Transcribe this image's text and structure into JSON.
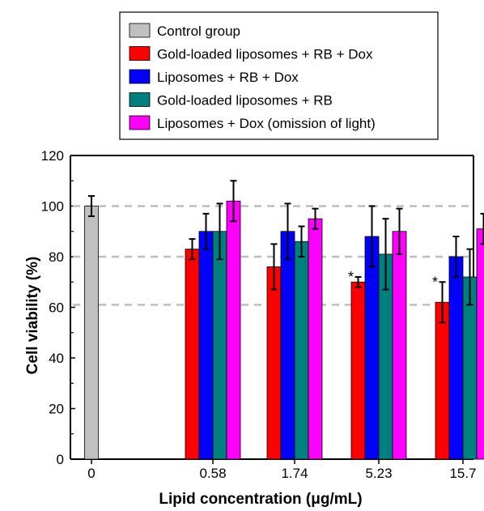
{
  "chart_data": {
    "type": "bar",
    "title": "",
    "xlabel": "Lipid concentration (μg/mL)",
    "ylabel": "Cell viability (%)",
    "ylim": [
      0,
      120
    ],
    "yticks": [
      0,
      20,
      40,
      60,
      80,
      100,
      120
    ],
    "categories": [
      "0",
      "0.58",
      "1.74",
      "5.23",
      "15.7"
    ],
    "reference_lines": [
      61,
      80,
      100
    ],
    "grid": false,
    "legend_position": "top-center",
    "series": [
      {
        "name": "Control group",
        "color": "#c0c0c0",
        "values": [
          100,
          null,
          null,
          null,
          null
        ],
        "errors": [
          4,
          null,
          null,
          null,
          null
        ]
      },
      {
        "name": "Gold-loaded liposomes + RB + Dox",
        "color": "#ff0000",
        "values": [
          null,
          83,
          76,
          70,
          62
        ],
        "errors": [
          null,
          4,
          9,
          2,
          8
        ]
      },
      {
        "name": "Liposomes + RB + Dox",
        "color": "#0000ff",
        "values": [
          null,
          90,
          90,
          88,
          80
        ],
        "errors": [
          null,
          7,
          11,
          12,
          8
        ]
      },
      {
        "name": "Gold-loaded liposomes + RB",
        "color": "#007f7f",
        "values": [
          null,
          90,
          86,
          81,
          72
        ],
        "errors": [
          null,
          11,
          6,
          14,
          11
        ]
      },
      {
        "name": "Liposomes + Dox (omission of light)",
        "color": "#ff00ff",
        "values": [
          null,
          102,
          95,
          90,
          91
        ],
        "errors": [
          null,
          8,
          4,
          9,
          6
        ]
      }
    ],
    "annotations": [
      {
        "category": "5.23",
        "series": "Gold-loaded liposomes + RB + Dox",
        "text": "*"
      },
      {
        "category": "15.7",
        "series": "Gold-loaded liposomes + RB + Dox",
        "text": "*"
      }
    ]
  }
}
